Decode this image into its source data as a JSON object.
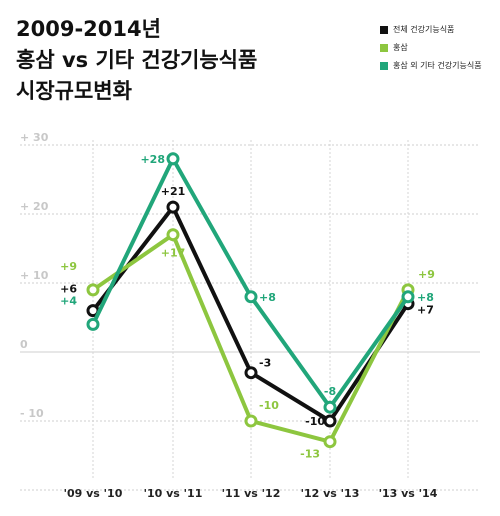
{
  "title_lines": [
    "2009-2014년",
    "홍삼 vs 기타 건강기능식품",
    "시장규모변화"
  ],
  "colors": {
    "total": "#111111",
    "ginseng": "#8dc63f",
    "other": "#21a67a"
  },
  "chart_data": {
    "type": "line",
    "title": "2009-2014년 홍삼 vs 기타 건강기능식품 시장규모변화",
    "xlabel": "",
    "ylabel": "",
    "categories": [
      "'09 vs '10",
      "'10 vs '11",
      "'11 vs '12",
      "'12 vs '13",
      "'13 vs '14"
    ],
    "y_ticks": [
      30,
      20,
      10,
      0,
      -10
    ],
    "y_tick_labels": [
      "+ 30",
      "+ 20",
      "+ 10",
      "0",
      "- 10"
    ],
    "ylim": [
      -20,
      30
    ],
    "grid": true,
    "legend_position": "top-right",
    "series": [
      {
        "key": "total",
        "name": "전체 건강기능식품",
        "values": [
          6,
          21,
          -3,
          -10,
          7
        ],
        "labels": [
          "+6",
          "+21",
          "-3",
          "-10",
          "+7"
        ]
      },
      {
        "key": "ginseng",
        "name": "홍삼",
        "values": [
          9,
          17,
          -10,
          -13,
          9
        ],
        "labels": [
          "+9",
          "+17",
          "-10",
          "-13",
          "+9"
        ]
      },
      {
        "key": "other",
        "name": "홍삼 외 기타 건강기능식품",
        "values": [
          4,
          28,
          8,
          -8,
          8
        ],
        "labels": [
          "+4",
          "+28",
          "+8",
          "-8",
          "+8"
        ]
      }
    ]
  }
}
